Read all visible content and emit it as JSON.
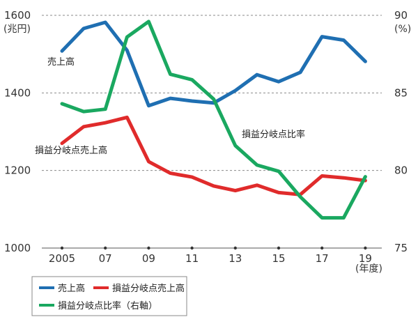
{
  "chart_data": {
    "type": "line",
    "x": [
      "2005",
      "06",
      "07",
      "08",
      "09",
      "10",
      "11",
      "12",
      "13",
      "14",
      "15",
      "16",
      "17",
      "18",
      "19"
    ],
    "x_tick_labels": [
      "2005",
      "07",
      "09",
      "11",
      "13",
      "15",
      "17",
      "19"
    ],
    "x_unit_label": "(年度)",
    "y_left": {
      "unit_label": "(兆円)",
      "ylim": [
        1000,
        1600
      ],
      "ticks": [
        "1000",
        "1200",
        "1400",
        "1600"
      ]
    },
    "y_right": {
      "unit_label": "(%)",
      "ylim": [
        75,
        90
      ],
      "ticks": [
        "75",
        "80",
        "85",
        "90"
      ]
    },
    "grid": "horizontal dashed",
    "legend_position": "bottom-left",
    "series": [
      {
        "name": "売上高",
        "axis": "left",
        "color": "#1f6fb2",
        "values": [
          1508,
          1566,
          1582,
          1510,
          1367,
          1386,
          1379,
          1374,
          1406,
          1447,
          1429,
          1453,
          1545,
          1536,
          1481
        ]
      },
      {
        "name": "損益分岐点売上高",
        "axis": "left",
        "color": "#e02b2b",
        "values": [
          1270,
          1313,
          1323,
          1337,
          1223,
          1193,
          1183,
          1160,
          1148,
          1162,
          1143,
          1138,
          1186,
          1181,
          1174
        ]
      },
      {
        "name": "損益分岐点比率（右軸）",
        "axis": "right",
        "color": "#1aa860",
        "values": [
          84.3,
          83.8,
          83.95,
          88.6,
          89.6,
          86.2,
          85.85,
          84.6,
          81.6,
          80.35,
          79.95,
          78.3,
          76.95,
          76.95,
          79.6
        ]
      }
    ],
    "annotations": [
      {
        "text": "売上高",
        "series": 0
      },
      {
        "text": "損益分岐点売上高",
        "series": 1
      },
      {
        "text": "損益分岐点比率",
        "series": 2
      }
    ]
  },
  "colors": {
    "grid": "#8a8a8a",
    "axis": "#555555"
  }
}
